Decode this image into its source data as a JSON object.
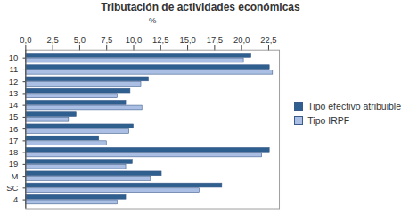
{
  "chart_data": {
    "type": "bar",
    "orientation": "horizontal",
    "title": "Tributación de actividades económicas",
    "x_label": "%",
    "categories": [
      "10",
      "11",
      "12",
      "13",
      "14",
      "15",
      "16",
      "17",
      "18",
      "19",
      "M",
      "SC",
      "4"
    ],
    "series": [
      {
        "name": "Tipo efectivo atribuible",
        "color": "#2f5f8f",
        "values": [
          20.9,
          22.6,
          11.4,
          9.7,
          9.3,
          4.7,
          10.0,
          6.8,
          22.6,
          9.9,
          12.6,
          18.2,
          9.3
        ]
      },
      {
        "name": "Tipo IRPF",
        "color": "#aabfe3",
        "values": [
          20.2,
          22.9,
          10.7,
          8.5,
          10.8,
          4.0,
          9.6,
          7.5,
          21.9,
          9.3,
          11.6,
          16.1,
          8.5
        ]
      }
    ],
    "xlim": [
      0,
      23.5
    ],
    "xticks": [
      {
        "value": 0,
        "label": "0,0"
      },
      {
        "value": 2.5,
        "label": "2,5"
      },
      {
        "value": 5,
        "label": "5,0"
      },
      {
        "value": 7.5,
        "label": "7,5"
      },
      {
        "value": 10,
        "label": "10,0"
      },
      {
        "value": 12.5,
        "label": "12,5"
      },
      {
        "value": 15,
        "label": "15,0"
      },
      {
        "value": 17.5,
        "label": "17,5"
      },
      {
        "value": 20,
        "label": "20,0"
      },
      {
        "value": 22.5,
        "label": "22,5"
      }
    ],
    "legend": "right"
  }
}
